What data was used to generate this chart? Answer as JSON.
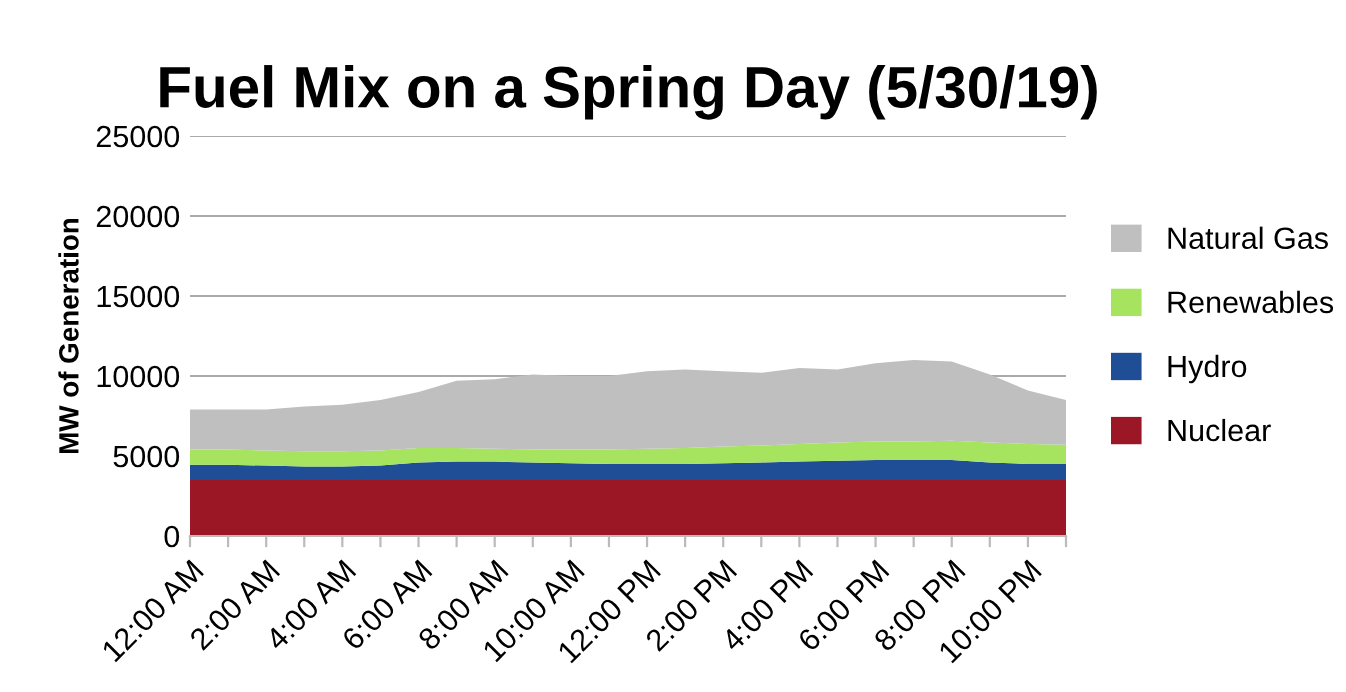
{
  "chart_data": {
    "type": "area",
    "title": "Fuel Mix on a Spring Day (5/30/19)",
    "ylabel": "MW of Generation",
    "categories": [
      "12:00 AM",
      null,
      "2:00 AM",
      null,
      "4:00 AM",
      null,
      "6:00 AM",
      null,
      "8:00 AM",
      null,
      "10:00 AM",
      null,
      "12:00 PM",
      null,
      "2:00 PM",
      null,
      "4:00 PM",
      null,
      "6:00 PM",
      null,
      "8:00 PM",
      null,
      "10:00 PM",
      null
    ],
    "stacked": true,
    "series": [
      {
        "name": "Nuclear",
        "color": "#9b1726",
        "values": [
          3500,
          3500,
          3500,
          3500,
          3500,
          3500,
          3500,
          3500,
          3500,
          3500,
          3500,
          3500,
          3500,
          3500,
          3500,
          3500,
          3500,
          3500,
          3500,
          3500,
          3500,
          3500,
          3500,
          3500
        ]
      },
      {
        "name": "Hydro",
        "color": "#1f4e96",
        "values": [
          950,
          950,
          900,
          850,
          850,
          900,
          1100,
          1150,
          1150,
          1100,
          1050,
          1000,
          1000,
          1000,
          1050,
          1100,
          1150,
          1200,
          1250,
          1250,
          1250,
          1100,
          1000,
          1000
        ]
      },
      {
        "name": "Renewables",
        "color": "#a6e35f",
        "values": [
          950,
          950,
          950,
          950,
          950,
          950,
          900,
          850,
          800,
          800,
          850,
          900,
          950,
          1000,
          1050,
          1050,
          1100,
          1150,
          1150,
          1150,
          1200,
          1250,
          1250,
          1200
        ]
      },
      {
        "name": "Natural Gas",
        "color": "#bfbfbf",
        "values": [
          2500,
          2500,
          2550,
          2800,
          2900,
          3150,
          3500,
          4200,
          4350,
          4700,
          4600,
          4600,
          4850,
          4900,
          4700,
          4550,
          4750,
          4550,
          4900,
          5100,
          4950,
          4250,
          3350,
          2800
        ]
      }
    ],
    "ylim": [
      0,
      25000
    ],
    "yticks": [
      0,
      5000,
      10000,
      15000,
      20000,
      25000
    ],
    "grid": "y",
    "legend": "right"
  }
}
